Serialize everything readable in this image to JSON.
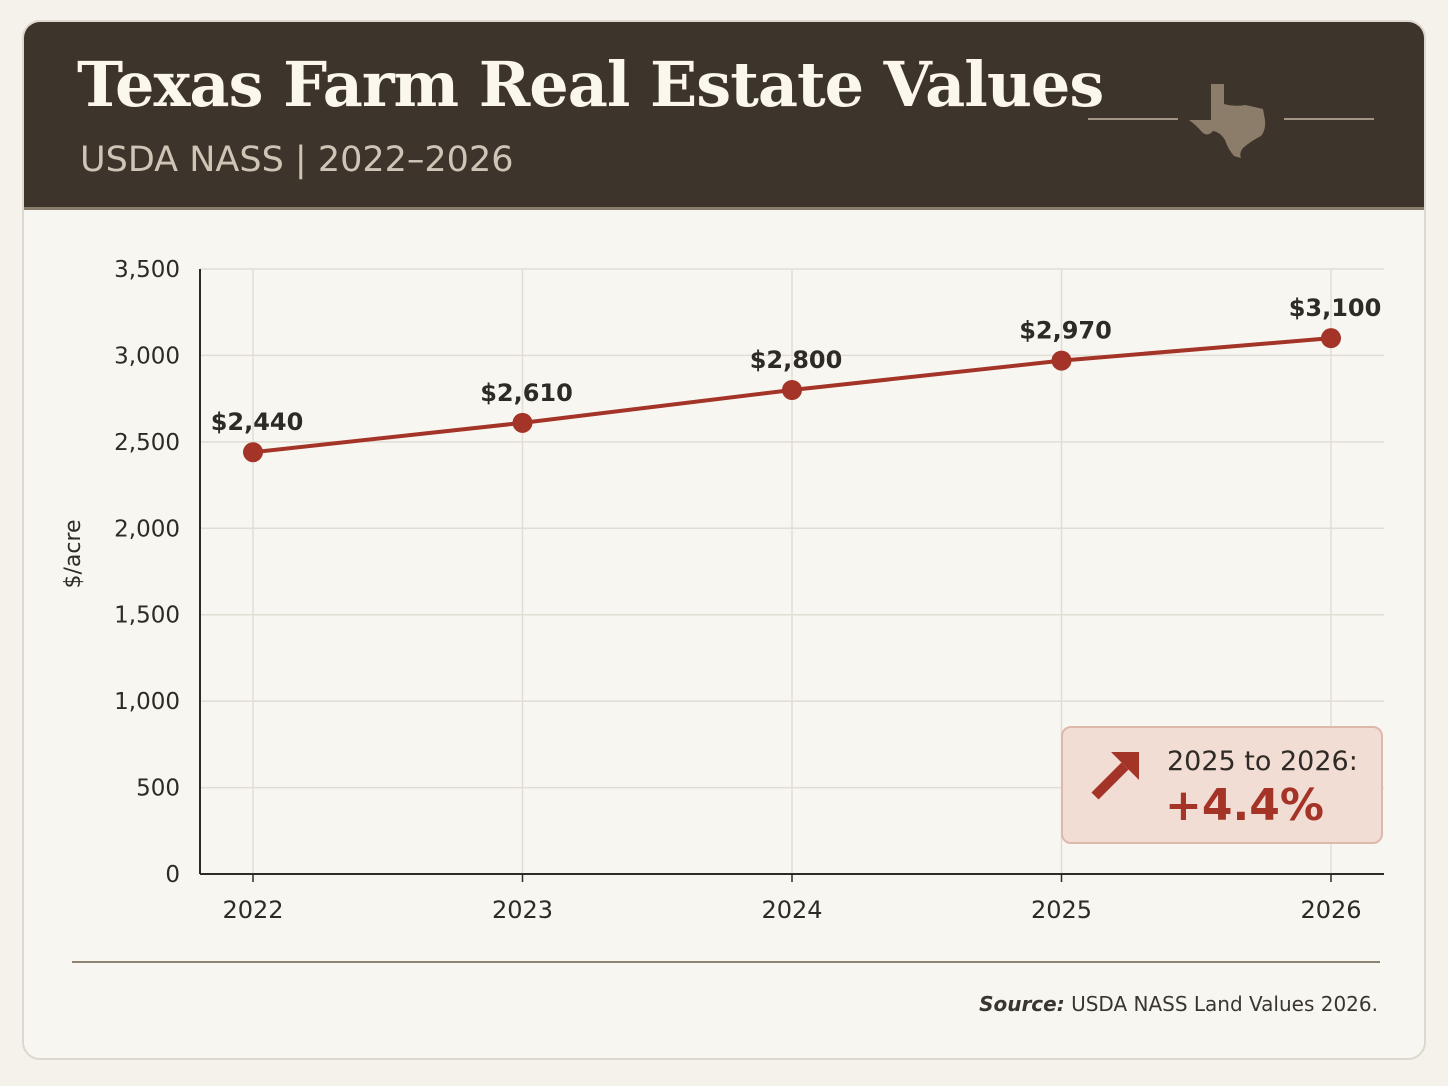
{
  "header": {
    "title": "Texas Farm Real Estate Values",
    "subtitle": "USDA NASS | 2022–2026",
    "icon": "texas-map-icon"
  },
  "chart_data": {
    "type": "line",
    "title": "Texas Farm Real Estate Values",
    "subtitle": "USDA NASS | 2022–2026",
    "xlabel": "",
    "ylabel": "$/acre",
    "categories": [
      "2022",
      "2023",
      "2024",
      "2025",
      "2026"
    ],
    "values": [
      2440,
      2610,
      2800,
      2970,
      3100
    ],
    "data_labels": [
      "$2,440",
      "$2,610",
      "$2,800",
      "$2,970",
      "$3,100"
    ],
    "ylim": [
      0,
      3500
    ],
    "yticks": [
      0,
      500,
      1000,
      1500,
      2000,
      2500,
      3000,
      3500
    ],
    "ytick_labels": [
      "0",
      "500",
      "1,000",
      "1,500",
      "2,000",
      "2,500",
      "3,000",
      "3,500"
    ],
    "grid": true,
    "line_color": "#a33427"
  },
  "callout": {
    "label": "2025 to 2026:",
    "value": "+4.4%",
    "icon": "arrow-up-right-icon"
  },
  "source": {
    "label": "Source:",
    "text": "USDA NASS Land Values 2026."
  },
  "colors": {
    "header_bg": "#3d342b",
    "accent": "#a33427",
    "card_bg": "#f8f6f1"
  }
}
